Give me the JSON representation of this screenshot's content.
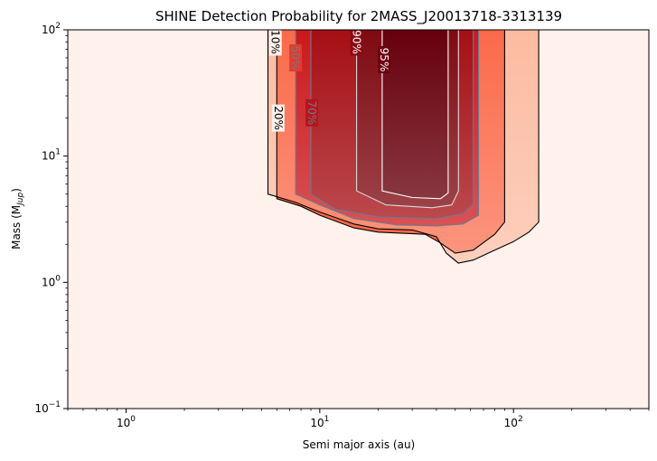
{
  "chart_data": {
    "type": "heatmap",
    "title": "SHINE Detection Probability for 2MASS_J20013718-3313139",
    "xlabel": "Semi major axis (au)",
    "ylabel": "Mass (M",
    "ylabel_sub": "Jup",
    "ylabel_close": ")",
    "xscale": "log",
    "yscale": "log",
    "xlim": [
      0.5,
      500
    ],
    "ylim": [
      0.1,
      100
    ],
    "x_ticks": [
      {
        "value": 1,
        "label_base": "10",
        "label_exp": "0"
      },
      {
        "value": 10,
        "label_base": "10",
        "label_exp": "1"
      },
      {
        "value": 100,
        "label_base": "10",
        "label_exp": "2"
      }
    ],
    "y_ticks": [
      {
        "value": 0.1,
        "label_base": "10",
        "label_exp": "−1"
      },
      {
        "value": 1,
        "label_base": "10",
        "label_exp": "0"
      },
      {
        "value": 10,
        "label_base": "10",
        "label_exp": "1"
      },
      {
        "value": 100,
        "label_base": "10",
        "label_exp": "2"
      }
    ],
    "colormap": "Reds",
    "colors": {
      "background": "#fff1eb",
      "c20": "#000000",
      "c50": "#6b7a8f",
      "c70": "#6b7a8f",
      "c90": "#d9d9d9",
      "c95": "#ffffff",
      "fill_low": "#fcbba1",
      "fill_mid": "#fb6a4a",
      "fill_high": "#cb181d",
      "fill_top": "#67000d"
    },
    "contours": [
      {
        "level": 10,
        "label": "10%",
        "points": [
          [
            5.4,
            100
          ],
          [
            5.4,
            5.0
          ],
          [
            7.5,
            4.3
          ],
          [
            10,
            3.6
          ],
          [
            15,
            2.9
          ],
          [
            20,
            2.65
          ],
          [
            30,
            2.6
          ],
          [
            40,
            2.3
          ],
          [
            45,
            1.7
          ],
          [
            52,
            1.42
          ],
          [
            62,
            1.5
          ],
          [
            80,
            1.8
          ],
          [
            100,
            2.1
          ],
          [
            120,
            2.5
          ],
          [
            135,
            3.0
          ],
          [
            135,
            100
          ]
        ]
      },
      {
        "level": 20,
        "label": "20%",
        "points": [
          [
            6.0,
            100
          ],
          [
            6.0,
            4.6
          ],
          [
            8,
            4.0
          ],
          [
            10,
            3.4
          ],
          [
            15,
            2.7
          ],
          [
            20,
            2.5
          ],
          [
            35,
            2.4
          ],
          [
            42,
            2.05
          ],
          [
            50,
            1.7
          ],
          [
            62,
            1.8
          ],
          [
            80,
            2.4
          ],
          [
            90,
            3.0
          ],
          [
            90,
            100
          ]
        ]
      },
      {
        "level": 50,
        "label": "50%",
        "points": [
          [
            7.5,
            100
          ],
          [
            7.5,
            5.0
          ],
          [
            10,
            4.1
          ],
          [
            15,
            3.2
          ],
          [
            25,
            2.85
          ],
          [
            40,
            2.8
          ],
          [
            55,
            2.9
          ],
          [
            66,
            3.4
          ],
          [
            66,
            100
          ]
        ]
      },
      {
        "level": 70,
        "label": "70%",
        "points": [
          [
            9.0,
            100
          ],
          [
            9.0,
            5.0
          ],
          [
            12,
            3.8
          ],
          [
            20,
            3.3
          ],
          [
            40,
            3.2
          ],
          [
            55,
            3.5
          ],
          [
            62,
            4.2
          ],
          [
            62,
            100
          ]
        ]
      },
      {
        "level": 90,
        "label": "90%",
        "points": [
          [
            15.5,
            100
          ],
          [
            15.5,
            5.3
          ],
          [
            22,
            4.1
          ],
          [
            38,
            3.9
          ],
          [
            48,
            4.1
          ],
          [
            52,
            5.3
          ],
          [
            52,
            100
          ]
        ]
      },
      {
        "level": 95,
        "label": "95%",
        "points": [
          [
            21,
            100
          ],
          [
            21,
            5.3
          ],
          [
            30,
            4.7
          ],
          [
            42,
            4.6
          ],
          [
            46,
            5.1
          ],
          [
            46,
            100
          ]
        ]
      }
    ],
    "contour_labels": [
      {
        "label": "10%",
        "x": 5.9,
        "y": 80
      },
      {
        "label": "20%",
        "x": 6.1,
        "y": 20
      },
      {
        "label": "50%",
        "x": 7.5,
        "y": 60
      },
      {
        "label": "70%",
        "x": 9.1,
        "y": 22
      },
      {
        "label": "90%",
        "x": 15.5,
        "y": 80
      },
      {
        "label": "95%",
        "x": 21.5,
        "y": 58
      }
    ]
  }
}
